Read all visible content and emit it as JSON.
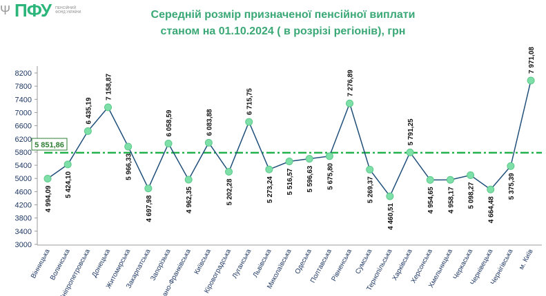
{
  "logo": {
    "mark": "ПФУ",
    "text": "ПЕНСІЙНИЙ ФОНД УКРАЇНИ"
  },
  "chart_data": {
    "type": "line",
    "title_line1": "Середній розмір призначеної пенсійної виплати",
    "title_line2": "станом на 01.10.2024 ( в розрізі регіонів), грн",
    "categories": [
      "Вінницька",
      "Волинська",
      "Дніпропетровська",
      "Донецька",
      "Житомирська",
      "Закарпатська",
      "Запорізька",
      "Івано-Франківська",
      "Київська",
      "Кіровоградська",
      "Луганська",
      "Львівська",
      "Миколаївська",
      "Одеська",
      "Полтавська",
      "Рівненська",
      "Сумська",
      "Тернопільська",
      "Харківська",
      "Херсонська",
      "Хмельницька",
      "Черкаська",
      "Чернівецька",
      "Чернігівська",
      "м. Київ"
    ],
    "values": [
      4994.09,
      5424.1,
      6435.19,
      7158.87,
      5966.33,
      4697.98,
      6058.59,
      4962.35,
      6083.88,
      5202.28,
      6715.75,
      5273.24,
      5516.57,
      5596.63,
      5675.8,
      7276.89,
      5269.37,
      4460.51,
      5791.25,
      4954.65,
      4958.17,
      5098.27,
      4664.48,
      5375.39,
      7971.08
    ],
    "labels": [
      "4 994,09",
      "5 424,10",
      "6 435,19",
      "7 158,87",
      "5 966,33",
      "4 697,98",
      "6 058,59",
      "4 962,35",
      "6 083,88",
      "5 202,28",
      "6 715,75",
      "5 273,24",
      "5 516,57",
      "5 596,63",
      "5 675,80",
      "7 276,89",
      "5 269,37",
      "4 460,51",
      "5 791,25",
      "4 954,65",
      "4 958,17",
      "5 098,27",
      "4 664,48",
      "5 375,39",
      "7 971,08"
    ],
    "label_above": [
      false,
      false,
      true,
      true,
      false,
      false,
      true,
      false,
      true,
      false,
      true,
      false,
      false,
      false,
      false,
      true,
      false,
      false,
      true,
      false,
      false,
      false,
      false,
      false,
      true
    ],
    "average": {
      "value": 5851.86,
      "label": "5 851,86"
    },
    "ylim": [
      3000,
      8400
    ],
    "yticks": [
      3000,
      3400,
      3800,
      4200,
      4600,
      5000,
      5400,
      5800,
      6200,
      6600,
      7000,
      7400,
      7800,
      8200
    ],
    "line_color": "#1f4e79",
    "marker_color": "#7ee0a8",
    "average_color": "#22b04b",
    "label_color": "#3aa876"
  }
}
